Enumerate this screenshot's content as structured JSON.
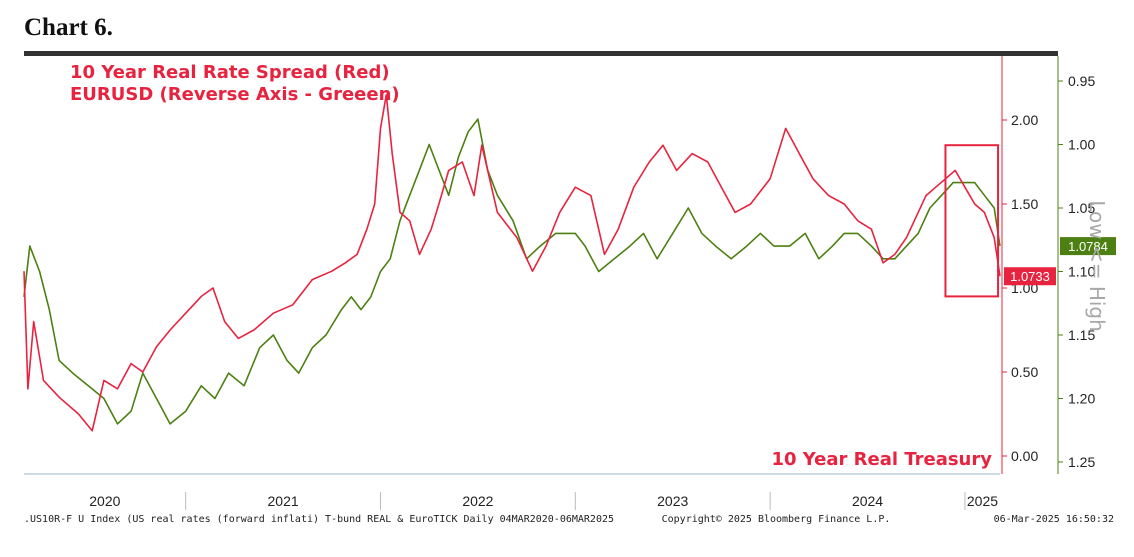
{
  "heading": "Chart 6.",
  "chart_data": {
    "type": "line",
    "title_lines": [
      "10 Year Real Rate Spread (Red)",
      "EURUSD (Reverse Axis - Greeen)"
    ],
    "annotation_bottom_right": "10 Year Real Treasury",
    "reverse_axis_label": "Low <= High",
    "x_range": [
      2020.17,
      2025.18
    ],
    "x_ticks": [
      "2020",
      "2021",
      "2022",
      "2023",
      "2024",
      "2025"
    ],
    "y_left_label": "",
    "y_right_red": {
      "ticks": [
        "2.00",
        "1.50",
        "1.00",
        "0.50",
        "0.00"
      ],
      "ylim": [
        0.0,
        2.4
      ]
    },
    "y_right_green": {
      "ticks": [
        "0.95",
        "1.00",
        "1.05",
        "1.10",
        "1.15",
        "1.20",
        "1.25"
      ],
      "ylim": [
        0.93,
        1.25
      ],
      "reversed": true
    },
    "series": [
      {
        "name": "10 Year Real Rate Spread",
        "color": "#e8233f",
        "axis": "red",
        "last_value_label": "1.0733",
        "x": [
          2020.17,
          2020.19,
          2020.22,
          2020.27,
          2020.35,
          2020.45,
          2020.52,
          2020.58,
          2020.65,
          2020.72,
          2020.78,
          2020.85,
          2020.92,
          2021.0,
          2021.08,
          2021.14,
          2021.2,
          2021.27,
          2021.35,
          2021.45,
          2021.55,
          2021.65,
          2021.75,
          2021.82,
          2021.88,
          2021.93,
          2021.97,
          2022.0,
          2022.03,
          2022.06,
          2022.1,
          2022.15,
          2022.2,
          2022.26,
          2022.3,
          2022.35,
          2022.42,
          2022.48,
          2022.52,
          2022.6,
          2022.7,
          2022.78,
          2022.85,
          2022.92,
          2023.0,
          2023.08,
          2023.15,
          2023.22,
          2023.3,
          2023.38,
          2023.45,
          2023.52,
          2023.6,
          2023.68,
          2023.75,
          2023.82,
          2023.9,
          2024.0,
          2024.08,
          2024.15,
          2024.22,
          2024.3,
          2024.38,
          2024.45,
          2024.52,
          2024.58,
          2024.64,
          2024.7,
          2024.76,
          2024.8,
          2024.85,
          2024.9,
          2024.95,
          2025.0,
          2025.05,
          2025.1,
          2025.15,
          2025.18
        ],
        "values": [
          1.1,
          0.4,
          0.8,
          0.45,
          0.35,
          0.25,
          0.15,
          0.45,
          0.4,
          0.55,
          0.5,
          0.65,
          0.75,
          0.85,
          0.95,
          1.0,
          0.8,
          0.7,
          0.75,
          0.85,
          0.9,
          1.05,
          1.1,
          1.15,
          1.2,
          1.35,
          1.5,
          1.95,
          2.15,
          1.8,
          1.45,
          1.4,
          1.2,
          1.35,
          1.5,
          1.7,
          1.75,
          1.55,
          1.85,
          1.45,
          1.3,
          1.1,
          1.25,
          1.45,
          1.6,
          1.55,
          1.2,
          1.35,
          1.6,
          1.75,
          1.85,
          1.7,
          1.8,
          1.75,
          1.6,
          1.45,
          1.5,
          1.65,
          1.95,
          1.8,
          1.65,
          1.55,
          1.5,
          1.4,
          1.35,
          1.15,
          1.2,
          1.3,
          1.45,
          1.55,
          1.6,
          1.65,
          1.7,
          1.6,
          1.5,
          1.45,
          1.3,
          1.07
        ]
      },
      {
        "name": "EURUSD (Reverse Axis)",
        "color": "#4d8012",
        "axis": "green",
        "last_value_label": "1.0784",
        "x": [
          2020.17,
          2020.2,
          2020.25,
          2020.3,
          2020.35,
          2020.42,
          2020.5,
          2020.58,
          2020.65,
          2020.72,
          2020.78,
          2020.85,
          2020.92,
          2021.0,
          2021.08,
          2021.15,
          2021.22,
          2021.3,
          2021.38,
          2021.45,
          2021.52,
          2021.58,
          2021.65,
          2021.72,
          2021.8,
          2021.85,
          2021.9,
          2021.95,
          2022.0,
          2022.05,
          2022.1,
          2022.15,
          2022.2,
          2022.25,
          2022.3,
          2022.35,
          2022.4,
          2022.45,
          2022.5,
          2022.55,
          2022.6,
          2022.68,
          2022.75,
          2022.82,
          2022.9,
          2023.0,
          2023.05,
          2023.12,
          2023.2,
          2023.28,
          2023.35,
          2023.42,
          2023.5,
          2023.58,
          2023.65,
          2023.72,
          2023.8,
          2023.88,
          2023.95,
          2024.02,
          2024.1,
          2024.18,
          2024.25,
          2024.32,
          2024.38,
          2024.45,
          2024.52,
          2024.58,
          2024.64,
          2024.7,
          2024.76,
          2024.82,
          2024.88,
          2024.94,
          2025.0,
          2025.05,
          2025.1,
          2025.15,
          2025.18
        ],
        "values": [
          1.12,
          1.08,
          1.1,
          1.13,
          1.17,
          1.18,
          1.19,
          1.2,
          1.22,
          1.21,
          1.18,
          1.2,
          1.22,
          1.21,
          1.19,
          1.2,
          1.18,
          1.19,
          1.16,
          1.15,
          1.17,
          1.18,
          1.16,
          1.15,
          1.13,
          1.12,
          1.13,
          1.12,
          1.1,
          1.09,
          1.06,
          1.04,
          1.02,
          1.0,
          1.02,
          1.04,
          1.01,
          0.99,
          0.98,
          1.02,
          1.04,
          1.06,
          1.09,
          1.08,
          1.07,
          1.07,
          1.08,
          1.1,
          1.09,
          1.08,
          1.07,
          1.09,
          1.07,
          1.05,
          1.07,
          1.08,
          1.09,
          1.08,
          1.07,
          1.08,
          1.08,
          1.07,
          1.09,
          1.08,
          1.07,
          1.07,
          1.08,
          1.09,
          1.09,
          1.08,
          1.07,
          1.05,
          1.04,
          1.03,
          1.03,
          1.03,
          1.04,
          1.05,
          1.08
        ]
      }
    ],
    "highlight_box": {
      "x": [
        2024.9,
        2025.17
      ],
      "y_red": [
        0.95,
        1.85
      ]
    }
  },
  "footer": {
    "left": ".US10R-F U Index (US real rates (forward inflati) T-bund REAL & EuroTICK  Daily 04MAR2020-06MAR2025",
    "middle": "Copyright© 2025 Bloomberg Finance L.P.",
    "right": "06-Mar-2025 16:50:32"
  }
}
